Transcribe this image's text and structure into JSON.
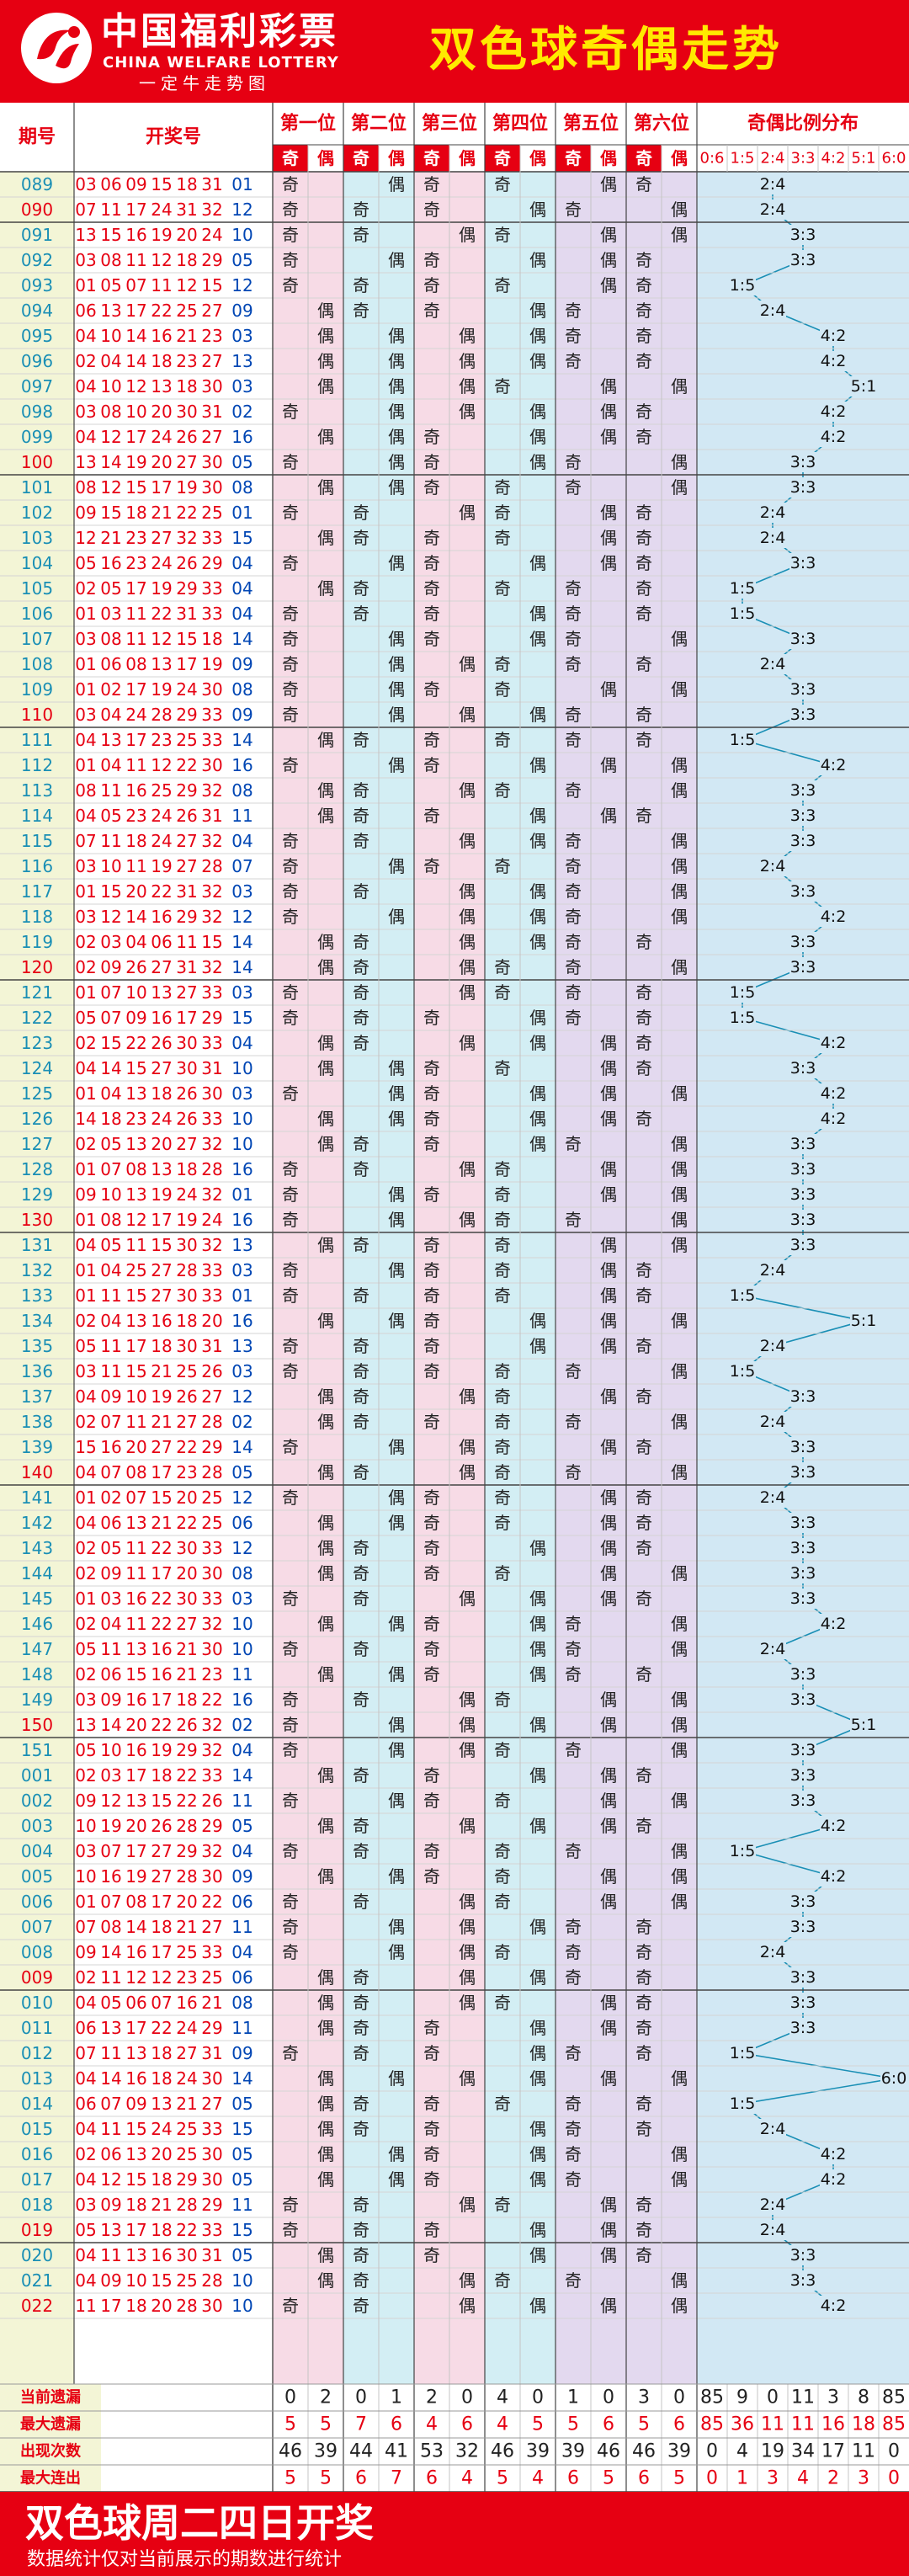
{
  "header": {
    "brand_cn": "中国福利彩票",
    "brand_en": "CHINA WELFARE LOTTERY",
    "slogan": "一定牛走势图",
    "title": "双色球奇偶走势"
  },
  "footer": {
    "title": "双色球周二四日开奖",
    "note": "数据统计仅对当前展示的期数进行统计"
  },
  "colors": {
    "brand_red": "#e60012",
    "title_yellow": "#ffea00",
    "red_ball": "#e60012",
    "blue_ball": "#0046b4",
    "issue_blue": "#1a8fb5",
    "pos_pink": "#f7dbe6",
    "pos_cyan": "#d3eef4",
    "pos_lavender": "#e3d9ef",
    "ratio_bg": "#d2e8f4",
    "issue_bg": "#f3f5d6",
    "line": "#1a8fb5"
  },
  "chart_data": {
    "type": "table",
    "headers": {
      "issue": "期号",
      "numbers": "开奖号",
      "positions": [
        "第一位",
        "第二位",
        "第三位",
        "第四位",
        "第五位",
        "第六位"
      ],
      "odd": "奇",
      "even": "偶",
      "ratio": "奇偶比例分布",
      "ratios": [
        "0:6",
        "1:5",
        "2:4",
        "3:3",
        "4:2",
        "5:1",
        "6:0"
      ]
    },
    "rows": [
      [
        "089",
        [
          3,
          6,
          9,
          15,
          18,
          31
        ],
        1
      ],
      [
        "090",
        [
          7,
          11,
          17,
          24,
          31,
          32
        ],
        12
      ],
      [
        "091",
        [
          13,
          15,
          16,
          19,
          20,
          24
        ],
        10
      ],
      [
        "092",
        [
          3,
          8,
          11,
          12,
          18,
          29
        ],
        5
      ],
      [
        "093",
        [
          1,
          5,
          7,
          11,
          12,
          15
        ],
        12
      ],
      [
        "094",
        [
          6,
          13,
          17,
          22,
          25,
          27
        ],
        9
      ],
      [
        "095",
        [
          4,
          10,
          14,
          16,
          21,
          23
        ],
        3
      ],
      [
        "096",
        [
          2,
          4,
          14,
          18,
          23,
          27
        ],
        13
      ],
      [
        "097",
        [
          4,
          10,
          12,
          13,
          18,
          30
        ],
        3
      ],
      [
        "098",
        [
          3,
          8,
          10,
          20,
          30,
          31
        ],
        2
      ],
      [
        "099",
        [
          4,
          12,
          17,
          24,
          26,
          27
        ],
        16
      ],
      [
        "100",
        [
          13,
          14,
          19,
          20,
          27,
          30
        ],
        5
      ],
      [
        "101",
        [
          8,
          12,
          15,
          17,
          19,
          30
        ],
        8
      ],
      [
        "102",
        [
          9,
          15,
          18,
          21,
          22,
          25
        ],
        1
      ],
      [
        "103",
        [
          12,
          21,
          23,
          27,
          32,
          33
        ],
        15
      ],
      [
        "104",
        [
          5,
          16,
          23,
          24,
          26,
          29
        ],
        4
      ],
      [
        "105",
        [
          2,
          5,
          17,
          19,
          29,
          33
        ],
        4
      ],
      [
        "106",
        [
          1,
          3,
          11,
          22,
          31,
          33
        ],
        4
      ],
      [
        "107",
        [
          3,
          8,
          11,
          12,
          15,
          18
        ],
        14
      ],
      [
        "108",
        [
          1,
          6,
          8,
          13,
          17,
          19
        ],
        9
      ],
      [
        "109",
        [
          1,
          2,
          17,
          19,
          24,
          30
        ],
        8
      ],
      [
        "110",
        [
          3,
          4,
          24,
          28,
          29,
          33
        ],
        9
      ],
      [
        "111",
        [
          4,
          13,
          17,
          23,
          25,
          33
        ],
        14
      ],
      [
        "112",
        [
          1,
          4,
          11,
          12,
          22,
          30
        ],
        16
      ],
      [
        "113",
        [
          8,
          11,
          16,
          25,
          29,
          32
        ],
        8
      ],
      [
        "114",
        [
          4,
          5,
          23,
          24,
          26,
          31
        ],
        11
      ],
      [
        "115",
        [
          7,
          11,
          18,
          24,
          27,
          32
        ],
        4
      ],
      [
        "116",
        [
          3,
          10,
          11,
          19,
          27,
          28
        ],
        7
      ],
      [
        "117",
        [
          1,
          15,
          20,
          22,
          31,
          32
        ],
        3
      ],
      [
        "118",
        [
          3,
          12,
          14,
          16,
          29,
          32
        ],
        12
      ],
      [
        "119",
        [
          2,
          3,
          4,
          6,
          11,
          15
        ],
        14
      ],
      [
        "120",
        [
          2,
          9,
          26,
          27,
          31,
          32
        ],
        14
      ],
      [
        "121",
        [
          1,
          7,
          10,
          13,
          27,
          33
        ],
        3
      ],
      [
        "122",
        [
          5,
          7,
          9,
          16,
          17,
          29
        ],
        15
      ],
      [
        "123",
        [
          2,
          15,
          22,
          26,
          30,
          33
        ],
        4
      ],
      [
        "124",
        [
          4,
          14,
          15,
          27,
          30,
          31
        ],
        10
      ],
      [
        "125",
        [
          1,
          4,
          13,
          18,
          26,
          30
        ],
        3
      ],
      [
        "126",
        [
          14,
          18,
          23,
          24,
          26,
          33
        ],
        10
      ],
      [
        "127",
        [
          2,
          5,
          13,
          20,
          27,
          32
        ],
        10
      ],
      [
        "128",
        [
          1,
          7,
          8,
          13,
          18,
          28
        ],
        16
      ],
      [
        "129",
        [
          9,
          10,
          13,
          19,
          24,
          32
        ],
        1
      ],
      [
        "130",
        [
          1,
          8,
          12,
          17,
          19,
          24
        ],
        16
      ],
      [
        "131",
        [
          4,
          5,
          11,
          15,
          30,
          32
        ],
        13
      ],
      [
        "132",
        [
          1,
          4,
          25,
          27,
          28,
          33
        ],
        3
      ],
      [
        "133",
        [
          1,
          11,
          15,
          27,
          30,
          33
        ],
        1
      ],
      [
        "134",
        [
          2,
          4,
          13,
          16,
          18,
          20
        ],
        16
      ],
      [
        "135",
        [
          5,
          11,
          17,
          18,
          30,
          31
        ],
        13
      ],
      [
        "136",
        [
          3,
          11,
          15,
          21,
          25,
          26
        ],
        3
      ],
      [
        "137",
        [
          4,
          9,
          10,
          19,
          26,
          27
        ],
        12
      ],
      [
        "138",
        [
          2,
          7,
          11,
          21,
          27,
          28
        ],
        2
      ],
      [
        "139",
        [
          15,
          16,
          20,
          27,
          22,
          29
        ],
        14
      ],
      [
        "140",
        [
          4,
          7,
          8,
          17,
          23,
          28
        ],
        5
      ],
      [
        "141",
        [
          1,
          2,
          7,
          15,
          20,
          25
        ],
        12
      ],
      [
        "142",
        [
          4,
          6,
          13,
          21,
          22,
          25
        ],
        6
      ],
      [
        "143",
        [
          2,
          5,
          11,
          22,
          30,
          33
        ],
        12
      ],
      [
        "144",
        [
          2,
          9,
          11,
          17,
          20,
          30
        ],
        8
      ],
      [
        "145",
        [
          1,
          3,
          16,
          22,
          30,
          33
        ],
        3
      ],
      [
        "146",
        [
          2,
          4,
          11,
          22,
          27,
          32
        ],
        10
      ],
      [
        "147",
        [
          5,
          11,
          13,
          16,
          21,
          30
        ],
        10
      ],
      [
        "148",
        [
          2,
          6,
          15,
          16,
          21,
          23
        ],
        11
      ],
      [
        "149",
        [
          3,
          9,
          16,
          17,
          18,
          22
        ],
        16
      ],
      [
        "150",
        [
          13,
          14,
          20,
          22,
          26,
          32
        ],
        2
      ],
      [
        "151",
        [
          5,
          10,
          16,
          19,
          29,
          32
        ],
        4
      ],
      [
        "001",
        [
          2,
          3,
          17,
          18,
          22,
          33
        ],
        14
      ],
      [
        "002",
        [
          9,
          12,
          13,
          15,
          22,
          26
        ],
        11
      ],
      [
        "003",
        [
          10,
          19,
          20,
          26,
          28,
          29
        ],
        5
      ],
      [
        "004",
        [
          3,
          7,
          17,
          27,
          29,
          32
        ],
        4
      ],
      [
        "005",
        [
          10,
          16,
          19,
          27,
          28,
          30
        ],
        9
      ],
      [
        "006",
        [
          1,
          7,
          8,
          17,
          20,
          22
        ],
        6
      ],
      [
        "007",
        [
          7,
          8,
          14,
          18,
          21,
          27
        ],
        11
      ],
      [
        "008",
        [
          9,
          14,
          16,
          17,
          25,
          33
        ],
        4
      ],
      [
        "009",
        [
          2,
          11,
          12,
          12,
          23,
          25
        ],
        6
      ],
      [
        "010",
        [
          4,
          5,
          6,
          7,
          16,
          21
        ],
        8
      ],
      [
        "011",
        [
          6,
          13,
          17,
          22,
          24,
          29
        ],
        11
      ],
      [
        "012",
        [
          7,
          11,
          13,
          18,
          27,
          31
        ],
        9
      ],
      [
        "013",
        [
          4,
          14,
          16,
          18,
          24,
          30
        ],
        14
      ],
      [
        "014",
        [
          6,
          7,
          9,
          13,
          21,
          27
        ],
        5
      ],
      [
        "015",
        [
          4,
          11,
          15,
          24,
          25,
          33
        ],
        15
      ],
      [
        "016",
        [
          2,
          6,
          13,
          20,
          25,
          30
        ],
        5
      ],
      [
        "017",
        [
          4,
          12,
          15,
          18,
          29,
          30
        ],
        5
      ],
      [
        "018",
        [
          3,
          9,
          18,
          21,
          28,
          29
        ],
        11
      ],
      [
        "019",
        [
          5,
          13,
          17,
          18,
          22,
          33
        ],
        15
      ],
      [
        "020",
        [
          4,
          11,
          13,
          16,
          30,
          31
        ],
        5
      ],
      [
        "021",
        [
          4,
          9,
          10,
          15,
          25,
          28
        ],
        10
      ],
      [
        "022",
        [
          11,
          17,
          18,
          20,
          28,
          30
        ],
        10
      ]
    ],
    "stats": [
      {
        "label": "当前遗漏",
        "values": [
          0,
          2,
          0,
          1,
          2,
          0,
          4,
          0,
          1,
          0,
          3,
          0,
          85,
          9,
          0,
          11,
          3,
          8,
          85
        ]
      },
      {
        "label": "最大遗漏",
        "values": [
          5,
          5,
          7,
          6,
          4,
          6,
          4,
          5,
          5,
          6,
          5,
          6,
          85,
          36,
          11,
          11,
          16,
          18,
          85
        ]
      },
      {
        "label": "出现次数",
        "values": [
          46,
          39,
          44,
          41,
          53,
          32,
          46,
          39,
          39,
          46,
          46,
          39,
          0,
          4,
          19,
          34,
          17,
          11,
          0
        ]
      },
      {
        "label": "最大连出",
        "values": [
          5,
          5,
          6,
          7,
          6,
          4,
          5,
          4,
          6,
          5,
          6,
          5,
          0,
          1,
          3,
          4,
          2,
          3,
          0
        ]
      }
    ]
  }
}
